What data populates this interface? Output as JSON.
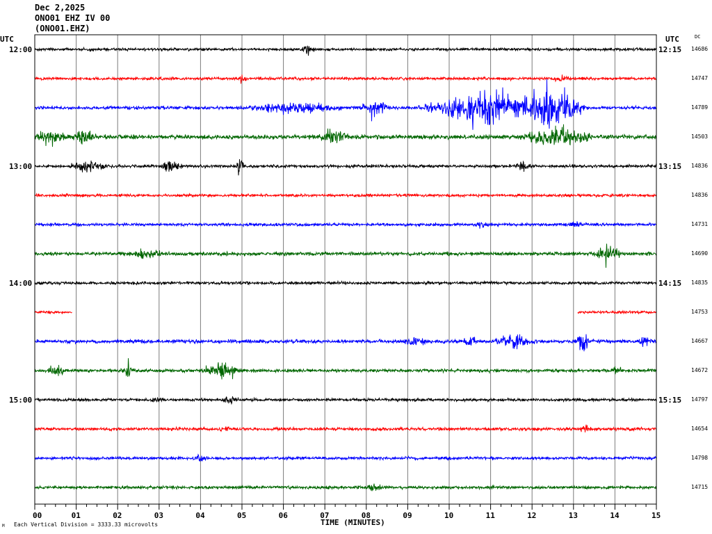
{
  "header": {
    "date": "Dec 2,2025",
    "station": "ONO01 EHZ IV 00",
    "code": "(ONO01.EHZ)"
  },
  "axis": {
    "utc_left": "UTC",
    "utc_right": "UTC",
    "dc_label": "DC",
    "xlabel": "TIME (MINUTES)",
    "xticks": [
      "00",
      "01",
      "02",
      "03",
      "04",
      "05",
      "06",
      "07",
      "08",
      "09",
      "10",
      "11",
      "12",
      "13",
      "14",
      "15"
    ],
    "scale_note": "Each Vertical Division = 3333.33 microvolts",
    "corner_mark": "M"
  },
  "chart_data": {
    "type": "line",
    "title": "",
    "xlabel": "TIME (MINUTES)",
    "ylabel": "",
    "xlim": [
      0,
      15
    ],
    "grid": true,
    "colors": [
      "#000000",
      "#ff0000",
      "#0000ff",
      "#006600"
    ],
    "left_time_labels": [
      {
        "row": 0,
        "label": "12:00"
      },
      {
        "row": 4,
        "label": "13:00"
      },
      {
        "row": 8,
        "label": "14:00"
      },
      {
        "row": 12,
        "label": "15:00"
      }
    ],
    "right_time_labels": [
      {
        "row": 0,
        "label": "12:15"
      },
      {
        "row": 4,
        "label": "13:15"
      },
      {
        "row": 8,
        "label": "14:15"
      },
      {
        "row": 12,
        "label": "15:15"
      }
    ],
    "traces": [
      {
        "dc": "14686",
        "noise": 1.5,
        "events": [
          [
            6.6,
            0.2,
            5
          ]
        ]
      },
      {
        "dc": "14747",
        "noise": 1.6,
        "events": [
          [
            5.0,
            0.1,
            5
          ],
          [
            12.7,
            0.2,
            5
          ]
        ]
      },
      {
        "dc": "14789",
        "noise": 1.8,
        "events": [
          [
            6.3,
            1.3,
            6
          ],
          [
            8.2,
            0.5,
            10
          ],
          [
            9.9,
            0.8,
            7
          ],
          [
            10.9,
            1.2,
            22
          ],
          [
            12.4,
            0.9,
            28
          ]
        ]
      },
      {
        "dc": "14503",
        "noise": 2.5,
        "events": [
          [
            0.4,
            0.5,
            7
          ],
          [
            1.2,
            0.3,
            8
          ],
          [
            7.2,
            0.4,
            7
          ],
          [
            12.6,
            0.9,
            13
          ]
        ]
      },
      {
        "dc": "14836",
        "noise": 1.7,
        "events": [
          [
            1.3,
            0.5,
            7
          ],
          [
            3.3,
            0.3,
            8
          ],
          [
            4.95,
            0.12,
            11
          ],
          [
            11.8,
            0.2,
            7
          ]
        ]
      },
      {
        "dc": "14836",
        "noise": 1.5,
        "events": []
      },
      {
        "dc": "14731",
        "noise": 1.6,
        "events": [
          [
            10.8,
            0.2,
            4
          ],
          [
            13.0,
            0.2,
            4
          ]
        ]
      },
      {
        "dc": "14690",
        "noise": 2.0,
        "events": [
          [
            2.7,
            0.5,
            5
          ],
          [
            13.8,
            0.35,
            11
          ]
        ]
      },
      {
        "dc": "14835",
        "noise": 1.6,
        "events": []
      },
      {
        "dc": "14753",
        "noise": 1.4,
        "events": [],
        "gap": [
          0.9,
          13.1
        ]
      },
      {
        "dc": "14667",
        "noise": 2.0,
        "events": [
          [
            9.2,
            0.4,
            5
          ],
          [
            10.5,
            0.2,
            7
          ],
          [
            11.6,
            0.5,
            8
          ],
          [
            13.2,
            0.2,
            12
          ],
          [
            14.7,
            0.2,
            7
          ]
        ]
      },
      {
        "dc": "14672",
        "noise": 1.8,
        "events": [
          [
            0.5,
            0.3,
            5
          ],
          [
            2.25,
            0.15,
            10
          ],
          [
            4.5,
            0.5,
            10
          ],
          [
            14.0,
            0.2,
            4
          ]
        ]
      },
      {
        "dc": "14797",
        "noise": 1.6,
        "events": [
          [
            3.0,
            0.2,
            4
          ],
          [
            4.7,
            0.3,
            4
          ]
        ]
      },
      {
        "dc": "14654",
        "noise": 1.7,
        "events": [
          [
            4.6,
            0.2,
            4
          ],
          [
            13.3,
            0.2,
            4
          ]
        ]
      },
      {
        "dc": "14798",
        "noise": 1.6,
        "events": [
          [
            4.0,
            0.2,
            4
          ]
        ]
      },
      {
        "dc": "14715",
        "noise": 1.7,
        "events": [
          [
            8.2,
            0.2,
            5
          ]
        ]
      }
    ]
  }
}
